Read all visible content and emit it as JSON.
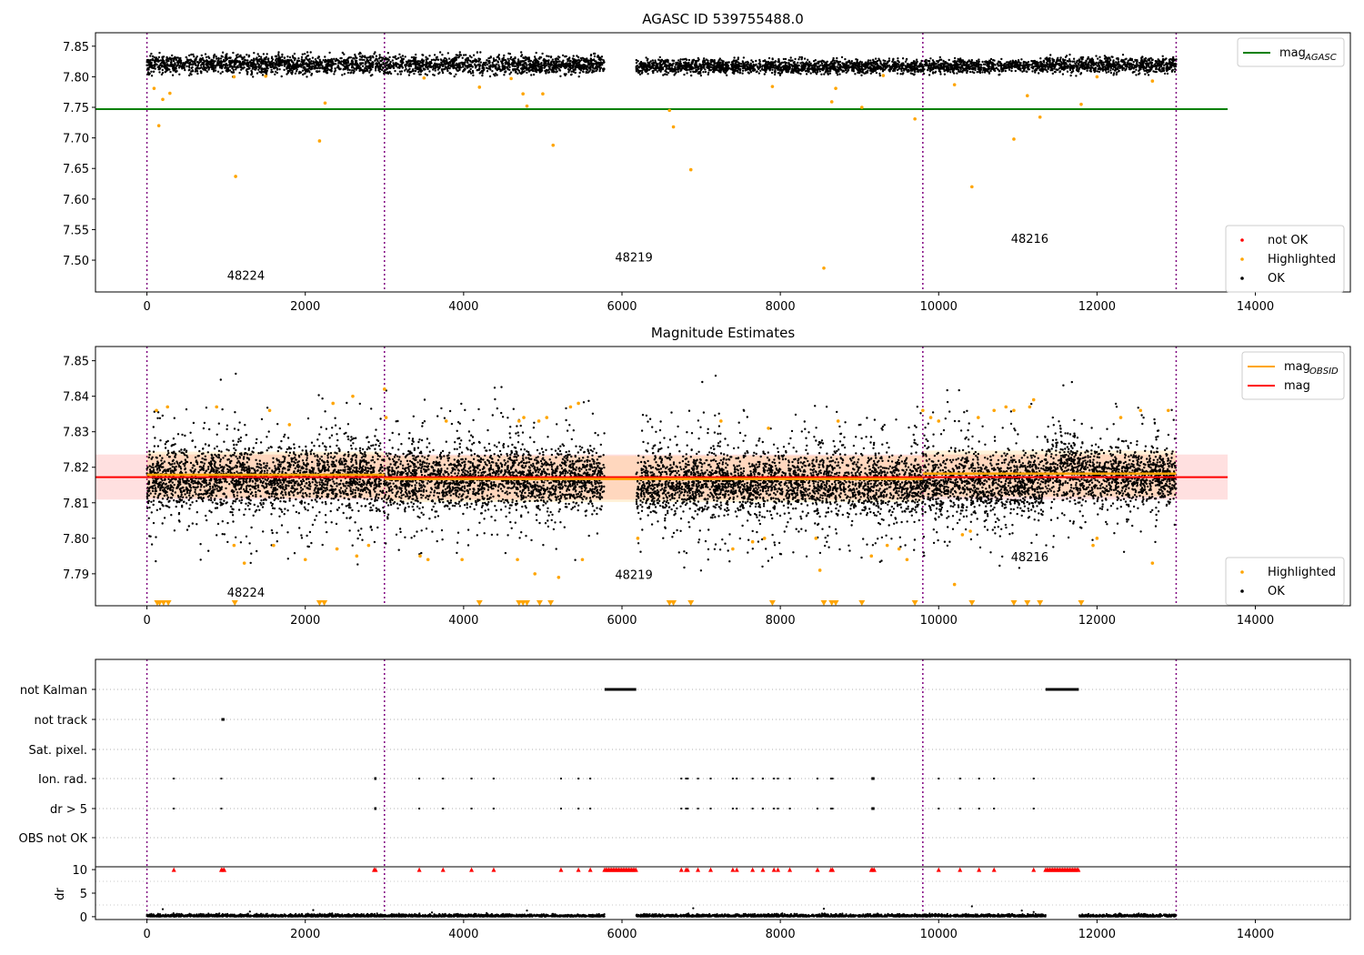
{
  "chart_data": [
    {
      "type": "scatter",
      "title": "AGASC ID 539755488.0",
      "xlim": [
        -650,
        15200
      ],
      "ylim": [
        7.448,
        7.872
      ],
      "xticks": [
        0,
        2000,
        4000,
        6000,
        8000,
        10000,
        12000,
        14000
      ],
      "yticks": [
        7.5,
        7.55,
        7.6,
        7.65,
        7.7,
        7.75,
        7.8,
        7.85
      ],
      "ytick_labels": [
        "7.50",
        "7.55",
        "7.60",
        "7.65",
        "7.70",
        "7.75",
        "7.80",
        "7.85"
      ],
      "lines": [
        {
          "name": "mag_AGASC",
          "color": "#008000",
          "y": 7.747,
          "x": [
            -650,
            13650
          ]
        }
      ],
      "legend_upper": {
        "placement": "top-right",
        "entries": [
          {
            "label": "mag",
            "sub": "AGASC",
            "color": "#008000",
            "kind": "line"
          }
        ]
      },
      "legend_lower": {
        "placement": "bottom-right",
        "entries": [
          {
            "label": "not OK",
            "color": "#ff0000",
            "kind": "dot"
          },
          {
            "label": "Highlighted",
            "color": "#ffa500",
            "kind": "dot"
          },
          {
            "label": "OK",
            "color": "#000000",
            "kind": "dot"
          }
        ]
      },
      "ok_bands": [
        {
          "x": [
            0,
            5780
          ],
          "y": [
            7.8,
            7.84
          ]
        },
        {
          "x": [
            6180,
            11350
          ],
          "y": [
            7.802,
            7.832
          ]
        },
        {
          "x": [
            11350,
            11770
          ],
          "y": [
            7.8,
            7.838
          ]
        },
        {
          "x": [
            11770,
            13000
          ],
          "y": [
            7.803,
            7.836
          ]
        }
      ],
      "highlighted": [
        [
          90,
          7.781
        ],
        [
          150,
          7.72
        ],
        [
          200,
          7.763
        ],
        [
          290,
          7.773
        ],
        [
          1100,
          7.8
        ],
        [
          1120,
          7.637
        ],
        [
          2180,
          7.695
        ],
        [
          2250,
          7.757
        ],
        [
          1500,
          7.801
        ],
        [
          3500,
          7.798
        ],
        [
          4200,
          7.783
        ],
        [
          4750,
          7.772
        ],
        [
          4800,
          7.752
        ],
        [
          5000,
          7.772
        ],
        [
          5130,
          7.688
        ],
        [
          4600,
          7.797
        ],
        [
          6600,
          7.745
        ],
        [
          6650,
          7.718
        ],
        [
          6870,
          7.648
        ],
        [
          7900,
          7.784
        ],
        [
          8550,
          7.487
        ],
        [
          8650,
          7.759
        ],
        [
          8700,
          7.781
        ],
        [
          9030,
          7.75
        ],
        [
          9700,
          7.731
        ],
        [
          10200,
          7.787
        ],
        [
          10420,
          7.62
        ],
        [
          10950,
          7.698
        ],
        [
          11120,
          7.769
        ],
        [
          11280,
          7.734
        ],
        [
          11800,
          7.755
        ],
        [
          12000,
          7.8
        ],
        [
          12700,
          7.793
        ],
        [
          9300,
          7.802
        ]
      ],
      "obsid_annotations": [
        {
          "label": "48224",
          "x": 1250,
          "y": 7.468
        },
        {
          "label": "48219",
          "x": 6150,
          "y": 7.498
        },
        {
          "label": "48216",
          "x": 11150,
          "y": 7.528
        }
      ]
    },
    {
      "type": "scatter",
      "title": "Magnitude Estimates",
      "xlim": [
        -650,
        15200
      ],
      "ylim": [
        7.781,
        7.854
      ],
      "xticks": [
        0,
        2000,
        4000,
        6000,
        8000,
        10000,
        12000,
        14000
      ],
      "yticks": [
        7.79,
        7.8,
        7.81,
        7.82,
        7.83,
        7.84,
        7.85
      ],
      "ytick_labels": [
        "7.79",
        "7.80",
        "7.81",
        "7.82",
        "7.83",
        "7.84",
        "7.85"
      ],
      "mag_line": {
        "name": "mag",
        "color": "#ff0000",
        "y": 7.8172,
        "x": [
          -650,
          13650
        ]
      },
      "mag_band": {
        "y": [
          7.8109,
          7.8236
        ],
        "x": [
          -650,
          13650
        ],
        "color": "#ff0000"
      },
      "mag_obsid": [
        {
          "x": [
            0,
            3000
          ],
          "y": 7.8179,
          "band": [
            7.8114,
            7.8244
          ]
        },
        {
          "x": [
            3000,
            9800
          ],
          "y": 7.8167,
          "band": [
            7.8102,
            7.8232
          ]
        },
        {
          "x": [
            9800,
            13000
          ],
          "y": 7.8182,
          "band": [
            7.8117,
            7.8247
          ]
        }
      ],
      "ok_density": [
        {
          "x": [
            0,
            5780
          ],
          "center": 7.817,
          "core": 0.0055,
          "spread": 0.016
        },
        {
          "x": [
            6180,
            11350
          ],
          "center": 7.8155,
          "core": 0.0055,
          "spread": 0.0165
        },
        {
          "x": [
            11350,
            11780
          ],
          "center": 7.82,
          "core": 0.006,
          "spread": 0.015
        },
        {
          "x": [
            11780,
            13000
          ],
          "center": 7.8175,
          "core": 0.005,
          "spread": 0.014
        }
      ],
      "highlighted": [
        [
          120,
          7.836
        ],
        [
          260,
          7.837
        ],
        [
          880,
          7.837
        ],
        [
          1100,
          7.798
        ],
        [
          1230,
          7.793
        ],
        [
          1550,
          7.836
        ],
        [
          1600,
          7.798
        ],
        [
          1800,
          7.832
        ],
        [
          2000,
          7.794
        ],
        [
          2350,
          7.838
        ],
        [
          2400,
          7.797
        ],
        [
          2600,
          7.84
        ],
        [
          2650,
          7.795
        ],
        [
          2800,
          7.798
        ],
        [
          3000,
          7.842
        ],
        [
          3020,
          7.834
        ],
        [
          3450,
          7.795
        ],
        [
          3550,
          7.794
        ],
        [
          3780,
          7.833
        ],
        [
          3980,
          7.794
        ],
        [
          4680,
          7.794
        ],
        [
          4700,
          7.833
        ],
        [
          4760,
          7.834
        ],
        [
          4900,
          7.79
        ],
        [
          4950,
          7.833
        ],
        [
          5050,
          7.834
        ],
        [
          5200,
          7.789
        ],
        [
          5350,
          7.837
        ],
        [
          5450,
          7.838
        ],
        [
          5500,
          7.794
        ],
        [
          6200,
          7.8
        ],
        [
          7250,
          7.833
        ],
        [
          7400,
          7.797
        ],
        [
          7650,
          7.799
        ],
        [
          7800,
          7.8
        ],
        [
          7850,
          7.831
        ],
        [
          8450,
          7.8
        ],
        [
          8500,
          7.791
        ],
        [
          8730,
          7.833
        ],
        [
          9150,
          7.795
        ],
        [
          9350,
          7.798
        ],
        [
          9500,
          7.797
        ],
        [
          9600,
          7.794
        ],
        [
          9800,
          7.836
        ],
        [
          9900,
          7.834
        ],
        [
          10000,
          7.833
        ],
        [
          10200,
          7.787
        ],
        [
          10300,
          7.801
        ],
        [
          10400,
          7.802
        ],
        [
          10500,
          7.834
        ],
        [
          10700,
          7.836
        ],
        [
          10850,
          7.837
        ],
        [
          10950,
          7.836
        ],
        [
          11150,
          7.837
        ],
        [
          11200,
          7.839
        ],
        [
          11950,
          7.798
        ],
        [
          12000,
          7.8
        ],
        [
          12300,
          7.834
        ],
        [
          12550,
          7.836
        ],
        [
          12700,
          7.793
        ],
        [
          12900,
          7.836
        ]
      ],
      "offscale_triangles": [
        130,
        160,
        210,
        270,
        1110,
        2180,
        2240,
        4200,
        4700,
        4750,
        4800,
        4960,
        5100,
        6600,
        6650,
        6870,
        7900,
        8550,
        8650,
        8700,
        9030,
        9700,
        10420,
        10950,
        11120,
        11280,
        11800
      ],
      "legend_upper": {
        "placement": "top-right",
        "entries": [
          {
            "label": "mag",
            "sub": "OBSID",
            "color": "#ffa500",
            "kind": "line"
          },
          {
            "label": "mag",
            "sub": "",
            "color": "#ff0000",
            "kind": "line"
          }
        ]
      },
      "legend_lower": {
        "placement": "bottom-right",
        "entries": [
          {
            "label": "Highlighted",
            "color": "#ffa500",
            "kind": "dot"
          },
          {
            "label": "OK",
            "color": "#000000",
            "kind": "dot"
          }
        ]
      },
      "obsid_annotations": [
        {
          "label": "48224",
          "x": 1250,
          "y": 7.7835
        },
        {
          "label": "48219",
          "x": 6150,
          "y": 7.7885
        },
        {
          "label": "48216",
          "x": 11150,
          "y": 7.7935
        }
      ]
    },
    {
      "type": "scatter",
      "title": "",
      "xlim": [
        -650,
        15200
      ],
      "xticks": [
        0,
        2000,
        4000,
        6000,
        8000,
        10000,
        12000,
        14000
      ],
      "flag_rows": [
        "not Kalman",
        "not track",
        "Sat. pixel.",
        "Ion. rad.",
        "dr > 5",
        "OBS not OK"
      ],
      "flags": {
        "not Kalman": {
          "ranges": [
            [
              5780,
              6180
            ],
            [
              11350,
              11770
            ]
          ],
          "points": []
        },
        "not track": {
          "ranges": [
            [
              940,
              980
            ]
          ],
          "points": []
        },
        "Sat. pixel.": {
          "ranges": [],
          "points": []
        },
        "Ion. rad.": {
          "ranges": [
            [
              2870,
              2900
            ],
            [
              9150,
              9190
            ]
          ],
          "points": [
            340,
            940,
            3440,
            3740,
            4100,
            4380,
            5230,
            5450,
            5600,
            6750,
            6810,
            6830,
            6960,
            7120,
            7400,
            7450,
            7650,
            7780,
            7920,
            7970,
            8120,
            8470,
            8640,
            8660,
            10000,
            10270,
            10510,
            10700,
            11200
          ]
        },
        "dr > 5": {
          "ranges": [
            [
              2870,
              2900
            ],
            [
              9150,
              9190
            ]
          ],
          "points": [
            340,
            940,
            3440,
            3740,
            4100,
            4380,
            5230,
            5450,
            5600,
            6750,
            6810,
            6830,
            6960,
            7120,
            7400,
            7450,
            7650,
            7780,
            7920,
            7970,
            8120,
            8470,
            8640,
            8660,
            10000,
            10270,
            10510,
            10700,
            11200
          ]
        },
        "OBS not OK": {
          "ranges": [],
          "points": []
        }
      },
      "dr": {
        "ylabel": "dr",
        "ylim": [
          -0.6,
          10.6
        ],
        "yticks": [
          0,
          5,
          10
        ],
        "ytick_labels": [
          "0",
          "5",
          "10"
        ],
        "capped_value": 10,
        "capped_ranges": [
          [
            940,
            980
          ],
          [
            2870,
            2900
          ],
          [
            5780,
            6180
          ],
          [
            9150,
            9190
          ],
          [
            11350,
            11770
          ]
        ],
        "capped_points": [
          340,
          3440,
          3740,
          4100,
          4380,
          5230,
          5450,
          5600,
          6750,
          6810,
          6830,
          6960,
          7120,
          7400,
          7450,
          7650,
          7780,
          7920,
          7970,
          8120,
          8470,
          8640,
          8660,
          10000,
          10270,
          10510,
          10700,
          11200
        ],
        "segments": [
          [
            0,
            5780
          ],
          [
            6180,
            11350
          ],
          [
            11770,
            13000
          ]
        ],
        "spikes": [
          [
            200,
            1.6
          ],
          [
            1300,
            1.1
          ],
          [
            2100,
            1.4
          ],
          [
            3600,
            0.9
          ],
          [
            4800,
            1.3
          ],
          [
            6900,
            1.8
          ],
          [
            8550,
            1.7
          ],
          [
            10420,
            2.2
          ],
          [
            11050,
            1.3
          ],
          [
            11200,
            1.0
          ]
        ]
      }
    }
  ],
  "obsid_boundaries": [
    0,
    3000,
    9800,
    13000
  ],
  "colors": {
    "ok": "#000000",
    "highlighted": "#ffa500",
    "not_ok": "#ff0000",
    "agasc": "#008000",
    "obsid": "#ffa500",
    "mag": "#ff0000",
    "boundary": "#800080"
  }
}
